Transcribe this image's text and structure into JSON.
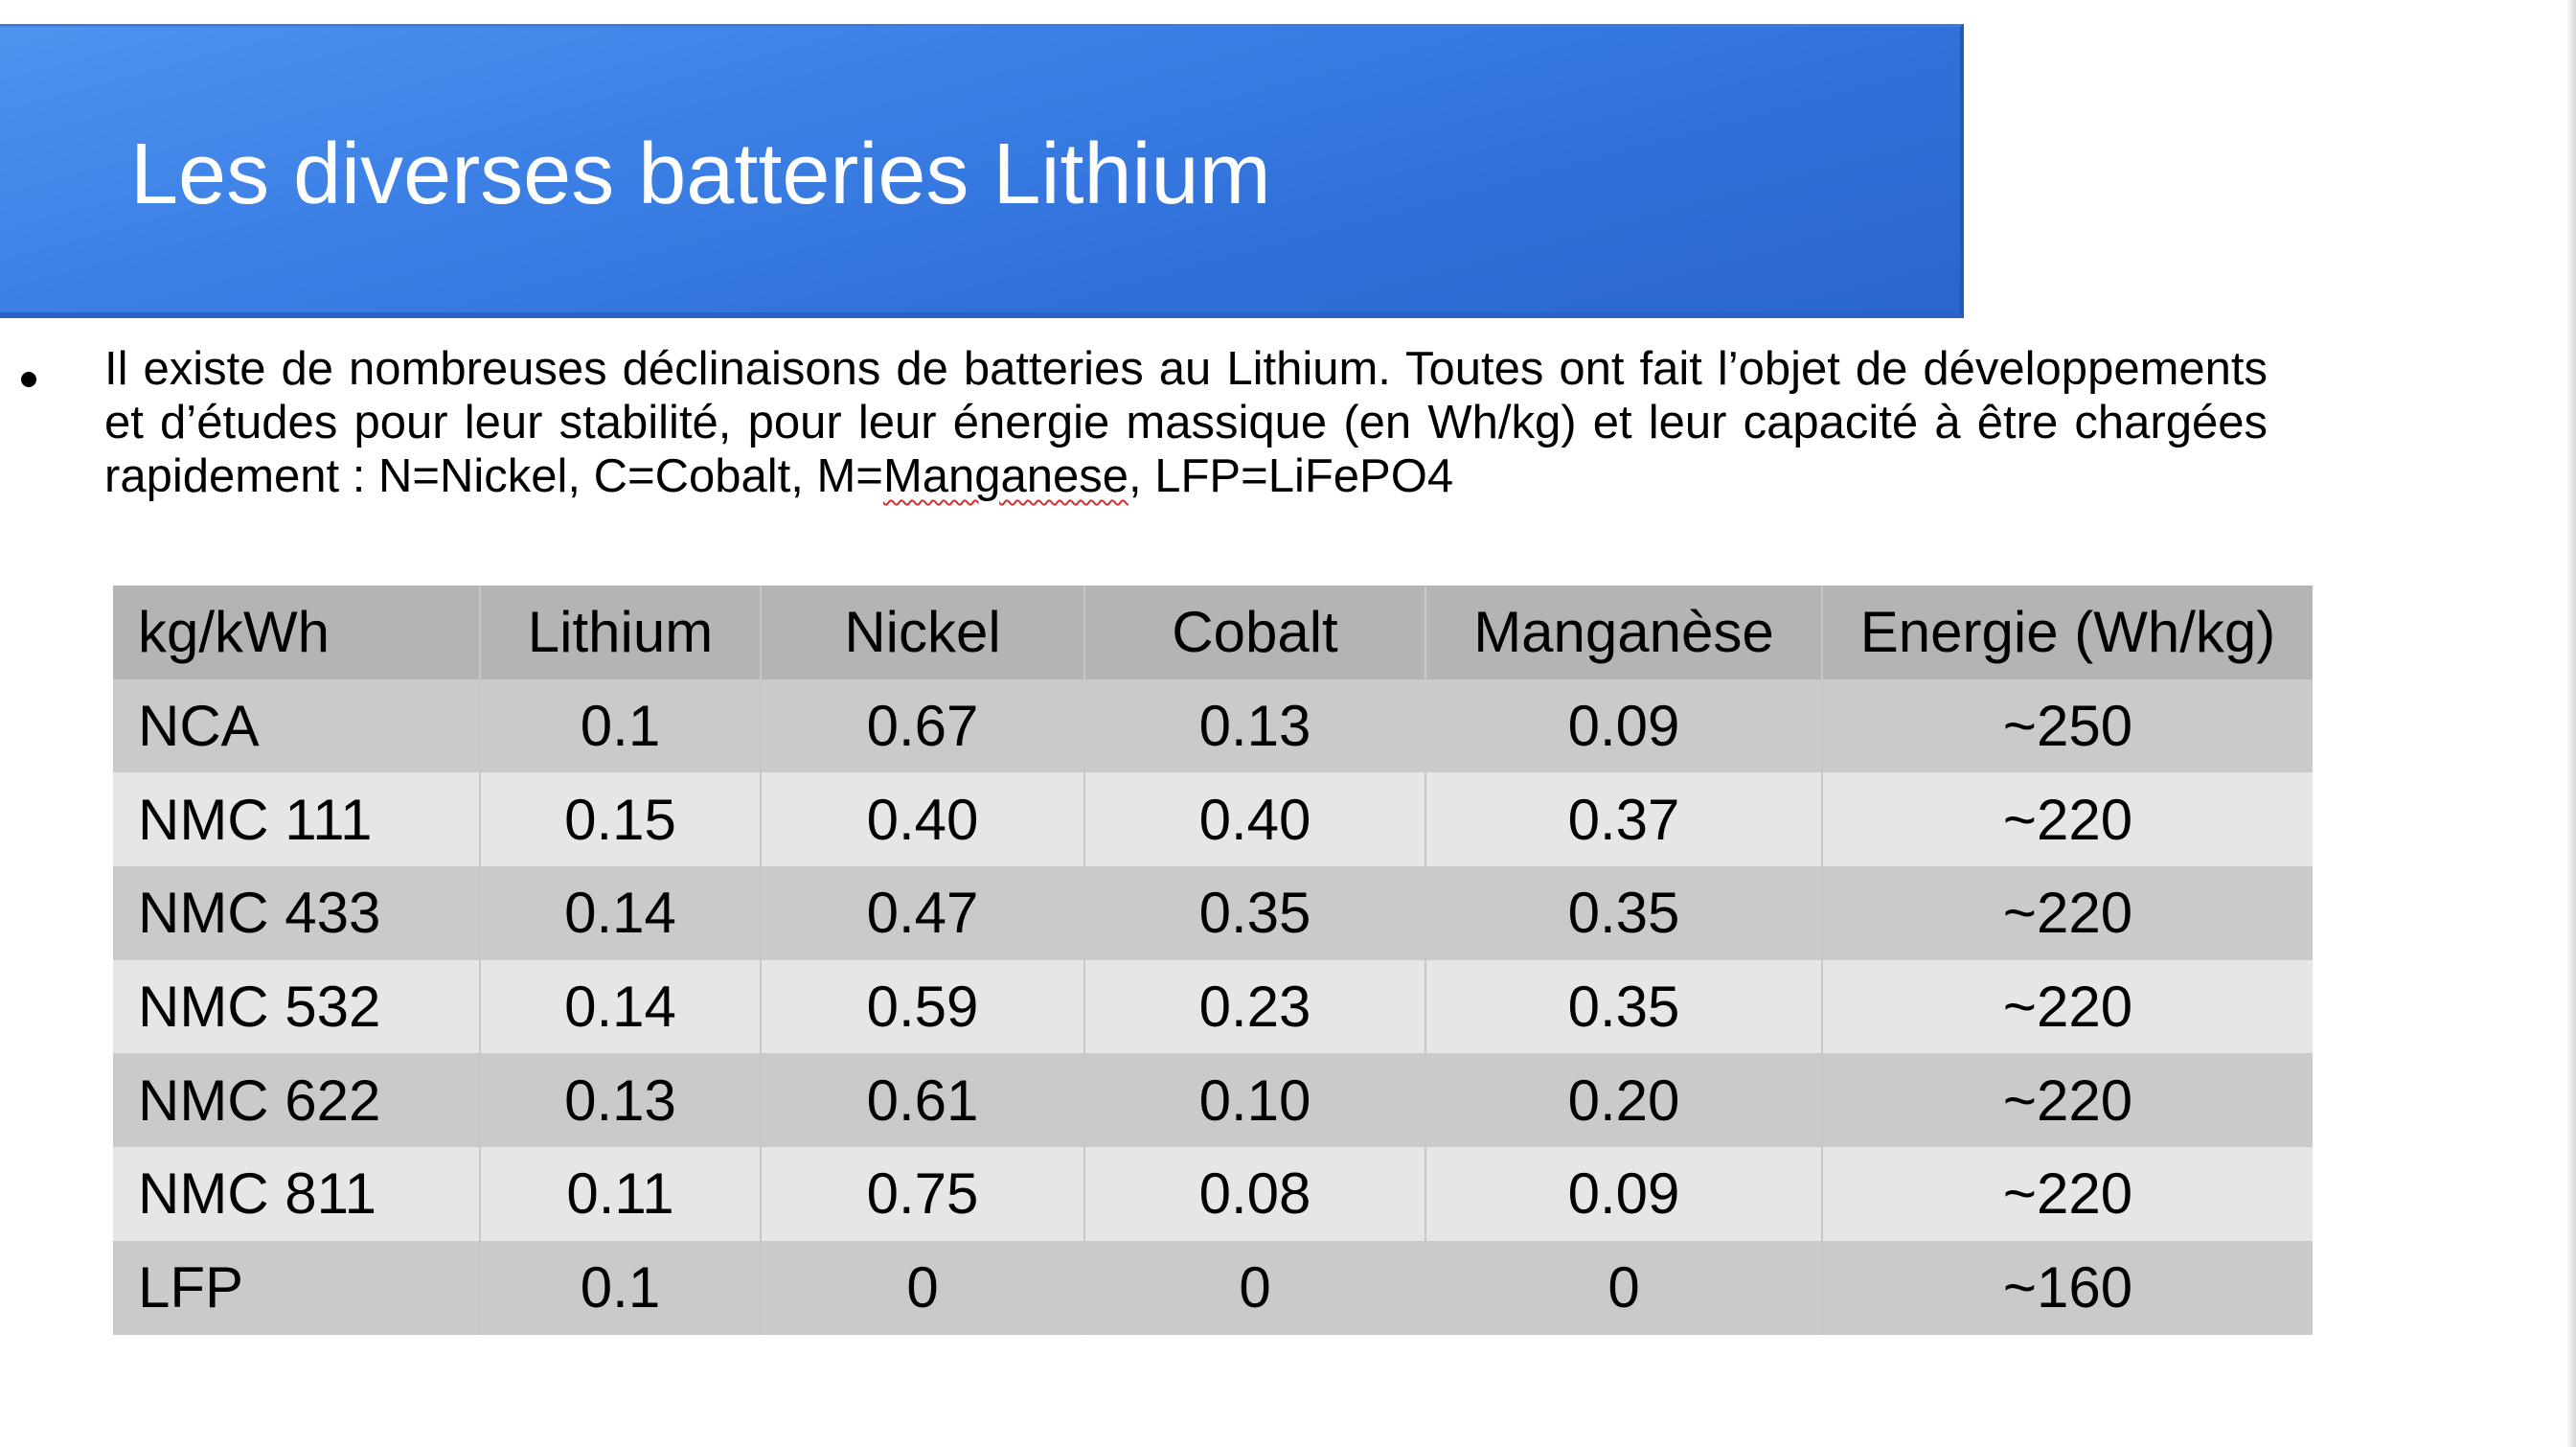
{
  "slide": {
    "title": "Les diverses batteries Lithium",
    "body_prefix": "Il existe de nombreuses déclinaisons de batteries au Lithium. Toutes ont fait l’objet de développements et d’études pour leur stabilité, pour leur énergie massique (en Wh/kg) et leur capacité à être chargées rapidement : N=Nickel, C=Cobalt, M=",
    "body_marked_word": "Manganese",
    "body_suffix": ", LFP=LiFePO4"
  },
  "table": {
    "headers": [
      "kg/kWh",
      "Lithium",
      "Nickel",
      "Cobalt",
      "Manganèse",
      "Energie (Wh/kg)"
    ],
    "rows": [
      [
        "NCA",
        "0.1",
        "0.67",
        "0.13",
        "0.09",
        "~250"
      ],
      [
        "NMC 111",
        "0.15",
        "0.40",
        "0.40",
        "0.37",
        "~220"
      ],
      [
        "NMC 433",
        "0.14",
        "0.47",
        "0.35",
        "0.35",
        "~220"
      ],
      [
        "NMC 532",
        "0.14",
        "0.59",
        "0.23",
        "0.35",
        "~220"
      ],
      [
        "NMC 622",
        "0.13",
        "0.61",
        "0.10",
        "0.20",
        "~220"
      ],
      [
        "NMC 811",
        "0.11",
        "0.75",
        "0.08",
        "0.09",
        "~220"
      ],
      [
        "LFP",
        "0.1",
        "0",
        "0",
        "0",
        "~160"
      ]
    ]
  },
  "colors": {
    "banner": "#3c80e6",
    "header_row": "#b4b4b4",
    "row_dark": "#cacaca",
    "row_light": "#e6e6e6",
    "spellcheck_underline": "#d03030"
  }
}
